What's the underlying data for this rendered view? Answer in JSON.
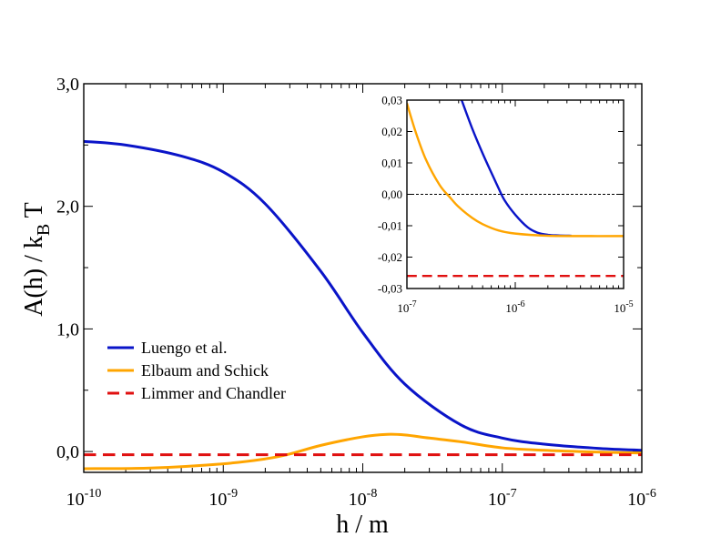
{
  "chart_data": [
    {
      "type": "line",
      "xscale": "log",
      "xlim": [
        1e-10,
        1e-06
      ],
      "ylim": [
        -0.17,
        3.0
      ],
      "x_ticks": [
        {
          "base": "10",
          "exp": "-10"
        },
        {
          "base": "10",
          "exp": "-9"
        },
        {
          "base": "10",
          "exp": "-8"
        },
        {
          "base": "10",
          "exp": "-7"
        },
        {
          "base": "10",
          "exp": "-6"
        }
      ],
      "y_ticks": [
        "0,0",
        "1,0",
        "2,0",
        "3,0"
      ],
      "xlabel": "h / m",
      "ylabel": {
        "main": "A(h) / k",
        "sub": "B",
        "tail": " T"
      },
      "legend_position": "center-left",
      "series": [
        {
          "name": "Luengo et al.",
          "color": "#0a14c8",
          "style": "solid",
          "x": [
            1e-10,
            2e-10,
            5e-10,
            1e-09,
            2e-09,
            5e-09,
            1e-08,
            2e-08,
            5e-08,
            1e-07,
            2e-07,
            5e-07,
            1e-06
          ],
          "y": [
            2.53,
            2.5,
            2.41,
            2.28,
            2.02,
            1.47,
            0.97,
            0.55,
            0.22,
            0.11,
            0.06,
            0.025,
            0.01
          ]
        },
        {
          "name": "Elbaum and Schick",
          "color": "#ffa500",
          "style": "solid",
          "x": [
            1e-10,
            3e-10,
            1e-09,
            2e-09,
            3e-09,
            5e-09,
            1e-08,
            1.5e-08,
            2e-08,
            3e-08,
            5e-08,
            1e-07,
            2e-07,
            5e-07,
            1e-06
          ],
          "y": [
            -0.14,
            -0.135,
            -0.1,
            -0.06,
            -0.02,
            0.05,
            0.12,
            0.14,
            0.135,
            0.11,
            0.08,
            0.03,
            0.01,
            -0.005,
            -0.012
          ]
        },
        {
          "name": "Limmer and Chandler",
          "color": "#e01010",
          "style": "dashed",
          "x": [
            1e-10,
            1e-06
          ],
          "y": [
            -0.026,
            -0.026
          ]
        }
      ]
    },
    {
      "type": "line",
      "xscale": "log",
      "xlim": [
        1e-07,
        1e-05
      ],
      "ylim": [
        -0.03,
        0.03
      ],
      "x_ticks": [
        {
          "base": "10",
          "exp": "-7"
        },
        {
          "base": "10",
          "exp": "-6"
        },
        {
          "base": "10",
          "exp": "-5"
        }
      ],
      "y_ticks": [
        "-0,03",
        "-0,02",
        "-0,01",
        "0,00",
        "0,01",
        "0,02",
        "0,03"
      ],
      "zero_line": true,
      "series": [
        {
          "color": "#0a14c8",
          "style": "solid",
          "x": [
            3.2e-07,
            4e-07,
            5e-07,
            6e-07,
            7e-07,
            8e-07,
            1e-06,
            1.3e-06,
            1.6e-06,
            2e-06,
            2.5e-06,
            3.3e-06
          ],
          "y": [
            0.03,
            0.021,
            0.013,
            0.007,
            0.002,
            -0.002,
            -0.0065,
            -0.0105,
            -0.0122,
            -0.0129,
            -0.0131,
            -0.0132
          ]
        },
        {
          "color": "#ffa500",
          "style": "solid",
          "x": [
            1e-07,
            1.2e-07,
            1.5e-07,
            2e-07,
            2.5e-07,
            3e-07,
            4e-07,
            5e-07,
            7e-07,
            1e-06,
            2e-06,
            5e-06,
            1e-05
          ],
          "y": [
            0.029,
            0.02,
            0.011,
            0.003,
            -0.001,
            -0.004,
            -0.0075,
            -0.0095,
            -0.0115,
            -0.0125,
            -0.0132,
            -0.0133,
            -0.0133
          ]
        },
        {
          "color": "#e01010",
          "style": "dashed",
          "x": [
            1e-07,
            1e-05
          ],
          "y": [
            -0.026,
            -0.026
          ]
        }
      ]
    }
  ]
}
